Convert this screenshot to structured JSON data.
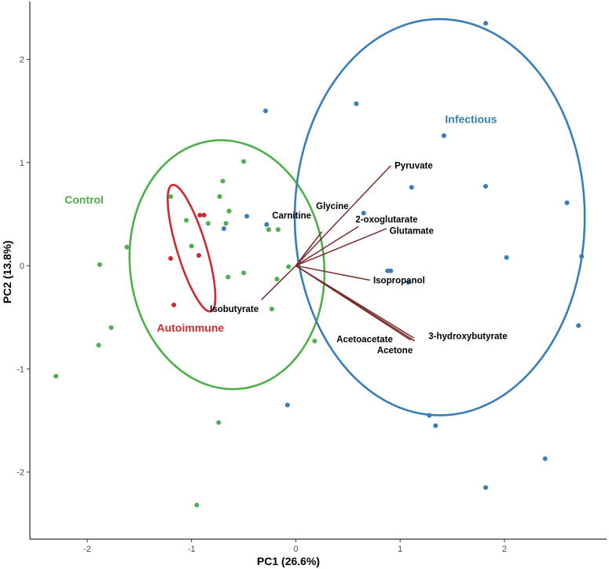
{
  "chart_data": {
    "type": "scatter",
    "xlabel": "PC1 (26.6%)",
    "ylabel": "PC2 (13.8%)",
    "xlim": [
      -2.55,
      2.98
    ],
    "ylim": [
      -2.65,
      2.56
    ],
    "xticks": [
      -2,
      -1,
      0,
      1,
      2
    ],
    "yticks": [
      -2,
      -1,
      0,
      1,
      2
    ],
    "grid": false,
    "series": [
      {
        "name": "Control",
        "color": "#4daf4a",
        "points": [
          [
            -2.3,
            -1.07
          ],
          [
            -1.88,
            0.01
          ],
          [
            -1.89,
            -0.77
          ],
          [
            -1.77,
            -0.6
          ],
          [
            -1.62,
            0.18
          ],
          [
            -1.2,
            0.67
          ],
          [
            -1.05,
            0.44
          ],
          [
            -1.0,
            0.19
          ],
          [
            -0.84,
            0.41
          ],
          [
            -0.73,
            0.67
          ],
          [
            -0.7,
            0.82
          ],
          [
            -0.67,
            0.41
          ],
          [
            -0.64,
            0.53
          ],
          [
            -0.65,
            -0.11
          ],
          [
            -0.5,
            -0.07
          ],
          [
            -0.5,
            1.01
          ],
          [
            -0.26,
            0.35
          ],
          [
            -0.23,
            -0.42
          ],
          [
            -0.17,
            0.35
          ],
          [
            -0.18,
            -0.13
          ],
          [
            -0.07,
            -0.01
          ],
          [
            0.18,
            -0.73
          ],
          [
            -0.74,
            -1.52
          ],
          [
            -0.95,
            -2.32
          ]
        ]
      },
      {
        "name": "Autoimmune",
        "color": "#cc2a2e",
        "points": [
          [
            -1.2,
            0.07
          ],
          [
            -1.17,
            -0.38
          ],
          [
            -0.92,
            0.49
          ],
          [
            -0.88,
            0.49
          ],
          [
            -0.93,
            0.1
          ]
        ]
      },
      {
        "name": "Infectious",
        "color": "#377eb8",
        "points": [
          [
            1.82,
            2.35
          ],
          [
            0.58,
            1.57
          ],
          [
            -0.29,
            1.5
          ],
          [
            1.42,
            1.26
          ],
          [
            1.11,
            0.76
          ],
          [
            1.82,
            0.77
          ],
          [
            2.6,
            0.61
          ],
          [
            0.65,
            0.51
          ],
          [
            -0.47,
            0.48
          ],
          [
            -0.28,
            0.4
          ],
          [
            -0.69,
            0.36
          ],
          [
            2.02,
            0.08
          ],
          [
            2.74,
            0.09
          ],
          [
            0.88,
            -0.05
          ],
          [
            0.91,
            -0.05
          ],
          [
            1.08,
            -0.16
          ],
          [
            2.71,
            -0.58
          ],
          [
            -0.08,
            -1.35
          ],
          [
            1.28,
            -1.45
          ],
          [
            1.34,
            -1.55
          ],
          [
            2.39,
            -1.87
          ],
          [
            1.82,
            -2.15
          ]
        ]
      }
    ],
    "ellipses": [
      {
        "group": "Control",
        "color": "#4daf4a",
        "center": [
          -0.66,
          0.01
        ],
        "rx": 0.93,
        "ry": 1.21,
        "angle_deg": -7
      },
      {
        "group": "Autoimmune",
        "color": "#cc2a2e",
        "center": [
          -1.0,
          0.17
        ],
        "rx": 0.14,
        "ry": 0.64,
        "angle_deg": -17
      },
      {
        "group": "Infectious",
        "color": "#377eb8",
        "center": [
          1.38,
          0.47
        ],
        "rx": 1.39,
        "ry": 1.92,
        "angle_deg": 0
      }
    ],
    "group_labels": [
      {
        "text": "Infectious",
        "x": 1.68,
        "y": 1.42,
        "color": "#377eb8"
      },
      {
        "text": "Control",
        "x": -2.03,
        "y": 0.64,
        "color": "#4daf4a"
      },
      {
        "text": "Autoimmune",
        "x": -1.01,
        "y": -0.6,
        "color": "#cc2a2e"
      }
    ],
    "loadings": {
      "color": "#7b2a2a",
      "origin": [
        0,
        0
      ],
      "vectors": [
        {
          "name": "Pyruvate",
          "x": 0.91,
          "y": 0.97,
          "label_x": 1.13,
          "label_y": 0.97
        },
        {
          "name": "Glycine",
          "x": 0.25,
          "y": 0.33,
          "label_x": 0.35,
          "label_y": 0.58
        },
        {
          "name": "Carnitine",
          "x": 0.15,
          "y": 0.2,
          "label_x": -0.04,
          "label_y": 0.49
        },
        {
          "name": "2-oxoglutarate",
          "x": 0.6,
          "y": 0.38,
          "label_x": 0.87,
          "label_y": 0.45
        },
        {
          "name": "Glutamate",
          "x": 0.87,
          "y": 0.36,
          "label_x": 1.11,
          "label_y": 0.34
        },
        {
          "name": "Isopropanol",
          "x": 0.71,
          "y": -0.14,
          "label_x": 0.99,
          "label_y": -0.14
        },
        {
          "name": "Isobutyrate",
          "x": -0.33,
          "y": -0.33,
          "label_x": -0.59,
          "label_y": -0.42
        },
        {
          "name": "Acetoacetate",
          "x": 1.14,
          "y": -0.73,
          "label_x": 0.66,
          "label_y": -0.71
        },
        {
          "name": "3-hydroxybutyrate",
          "x": 1.13,
          "y": -0.7,
          "label_x": 1.65,
          "label_y": -0.68
        },
        {
          "name": "Acetone",
          "x": 1.1,
          "y": -0.72,
          "label_x": 0.95,
          "label_y": -0.82
        }
      ]
    }
  }
}
